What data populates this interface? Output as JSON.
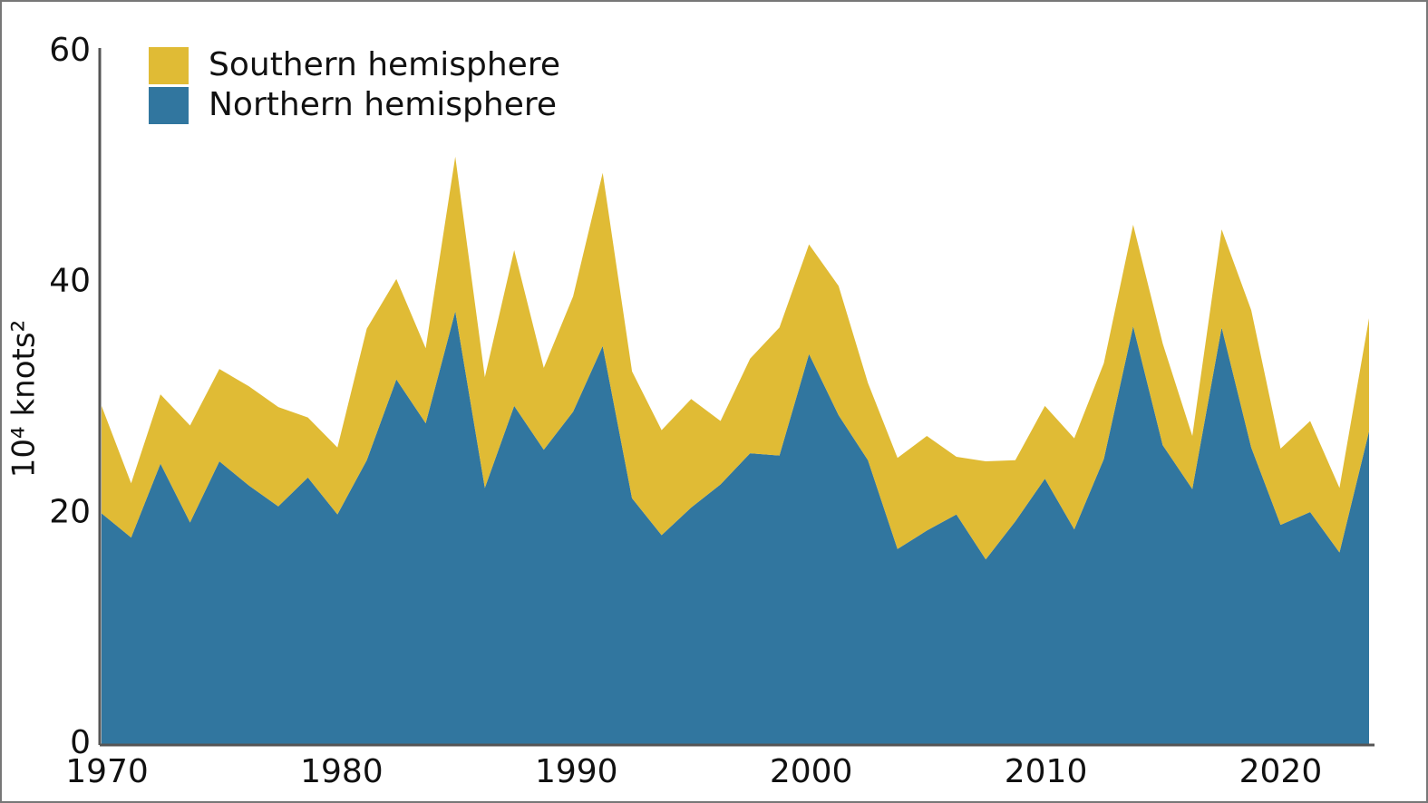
{
  "chart_data": {
    "type": "stacked_area",
    "ylabel": "10⁴ knots²",
    "x": [
      1970,
      1971.26,
      1972.51,
      1973.77,
      1975.02,
      1976.28,
      1977.53,
      1978.79,
      1980.05,
      1981.3,
      1982.56,
      1983.81,
      1985.07,
      1986.33,
      1987.58,
      1988.84,
      1990.09,
      1991.35,
      1992.6,
      1993.86,
      1995.12,
      1996.37,
      1997.63,
      1998.88,
      2000.14,
      2001.4,
      2002.65,
      2003.91,
      2005.16,
      2006.42,
      2007.67,
      2008.93,
      2010.19,
      2011.44,
      2012.7,
      2013.95,
      2015.21,
      2016.47,
      2017.72,
      2018.98,
      2020.23,
      2021.49,
      2022.74,
      2024
    ],
    "series": [
      {
        "name": "Northern hemisphere",
        "color": "#31769f",
        "values": [
          20,
          17.9,
          24.3,
          19.2,
          24.5,
          22.4,
          20.6,
          23.1,
          19.9,
          24.6,
          31.6,
          27.8,
          37.5,
          22.2,
          29.3,
          25.5,
          28.8,
          34.5,
          21.3,
          18.1,
          20.5,
          22.5,
          25.2,
          25,
          33.8,
          28.5,
          24.6,
          16.9,
          18.5,
          19.9,
          16,
          19.3,
          23,
          18.6,
          24.7,
          36.2,
          25.9,
          22.1,
          36.1,
          25.7,
          19,
          20.1,
          16.6,
          27.1
        ]
      },
      {
        "name": "Southern hemisphere",
        "color": "#e0bb35",
        "values": [
          9.3,
          4.7,
          6,
          8.4,
          8,
          8.6,
          8.6,
          5.2,
          5.8,
          11.4,
          8.7,
          6.5,
          13.4,
          9.6,
          13.5,
          7.1,
          10,
          15,
          11,
          9.1,
          9.4,
          5.5,
          8.2,
          11.1,
          9.5,
          11.2,
          6.7,
          7.9,
          8.2,
          5,
          8.5,
          5.3,
          6.3,
          7.9,
          8.3,
          8.8,
          8.8,
          4.6,
          8.5,
          11.9,
          6.6,
          7.9,
          5.6,
          9.8
        ]
      }
    ],
    "xlim": [
      1970,
      2024
    ],
    "xticks": [
      1970,
      1980,
      1990,
      2000,
      2010,
      2020
    ],
    "ylim": [
      0,
      60
    ],
    "yticks": [
      0,
      20,
      40,
      60
    ],
    "grid": false,
    "legend": "upper left"
  }
}
